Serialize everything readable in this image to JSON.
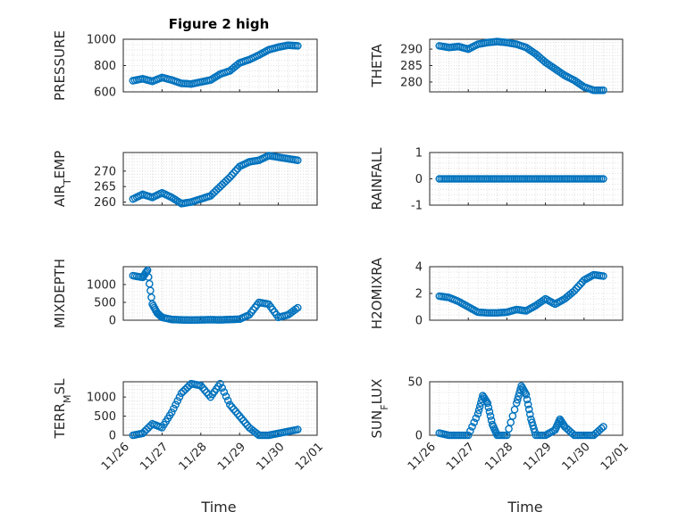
{
  "figure": {
    "title": "Figure 2 high",
    "xlabel": "Time",
    "xtick_labels": [
      "11/26",
      "11/27",
      "11/28",
      "11/29",
      "11/30",
      "12/01"
    ]
  },
  "colors": {
    "marker": "#0072BD",
    "axis": "#262626",
    "grid": "#d9d9d9"
  },
  "chart_data": [
    {
      "type": "scatter",
      "ylabel": "PRESSURE",
      "ylabel_sub": "",
      "ylim": [
        600,
        1000
      ],
      "yticks": [
        600,
        800,
        1000
      ],
      "x": [
        "11/26 06:00",
        "11/26 12:00",
        "11/26 18:00",
        "11/27 00:00",
        "11/27 06:00",
        "11/27 12:00",
        "11/27 18:00",
        "11/28 00:00",
        "11/28 06:00",
        "11/28 12:00",
        "11/28 18:00",
        "11/29 00:00",
        "11/29 06:00",
        "11/29 12:00",
        "11/29 18:00",
        "11/30 00:00",
        "11/30 06:00",
        "11/30 12:00"
      ],
      "values": [
        685,
        700,
        680,
        710,
        690,
        665,
        660,
        675,
        690,
        735,
        760,
        820,
        845,
        880,
        920,
        940,
        955,
        950
      ]
    },
    {
      "type": "scatter",
      "ylabel": "THETA",
      "ylabel_sub": "",
      "ylim": [
        277,
        293
      ],
      "yticks": [
        280,
        285,
        290
      ],
      "x": [
        "11/26 06:00",
        "11/26 12:00",
        "11/26 18:00",
        "11/27 00:00",
        "11/27 06:00",
        "11/27 12:00",
        "11/27 18:00",
        "11/28 00:00",
        "11/28 06:00",
        "11/28 12:00",
        "11/28 18:00",
        "11/29 00:00",
        "11/29 06:00",
        "11/29 12:00",
        "11/29 18:00",
        "11/30 00:00",
        "11/30 06:00",
        "11/30 12:00"
      ],
      "values": [
        291,
        290.5,
        290.8,
        290,
        291.5,
        292,
        292.3,
        292,
        291.5,
        290.5,
        288.5,
        286,
        284,
        282,
        280.5,
        278.5,
        277.5,
        277.5
      ]
    },
    {
      "type": "scatter",
      "ylabel": "AIR",
      "ylabel_sub": "T",
      "ylabel_rest": "EMP",
      "ylim": [
        259,
        276
      ],
      "yticks": [
        260,
        265,
        270
      ],
      "x": [
        "11/26 06:00",
        "11/26 12:00",
        "11/26 18:00",
        "11/27 00:00",
        "11/27 06:00",
        "11/27 12:00",
        "11/27 18:00",
        "11/28 00:00",
        "11/28 06:00",
        "11/28 12:00",
        "11/28 18:00",
        "11/29 00:00",
        "11/29 06:00",
        "11/29 12:00",
        "11/29 18:00",
        "11/30 00:00",
        "11/30 06:00",
        "11/30 12:00"
      ],
      "values": [
        261,
        262.5,
        261.5,
        263,
        261.5,
        259.5,
        260,
        261,
        262,
        265,
        268,
        271.5,
        273,
        273.5,
        275,
        274.5,
        274,
        273.5
      ]
    },
    {
      "type": "scatter",
      "ylabel": "RAINFALL",
      "ylabel_sub": "",
      "ylim": [
        -1,
        1
      ],
      "yticks": [
        -1,
        0,
        1
      ],
      "x": [
        "11/26 06:00",
        "11/26 12:00",
        "11/26 18:00",
        "11/27 00:00",
        "11/27 06:00",
        "11/27 12:00",
        "11/27 18:00",
        "11/28 00:00",
        "11/28 06:00",
        "11/28 12:00",
        "11/28 18:00",
        "11/29 00:00",
        "11/29 06:00",
        "11/29 12:00",
        "11/29 18:00",
        "11/30 00:00",
        "11/30 06:00",
        "11/30 12:00"
      ],
      "values": [
        0,
        0,
        0,
        0,
        0,
        0,
        0,
        0,
        0,
        0,
        0,
        0,
        0,
        0,
        0,
        0,
        0,
        0
      ]
    },
    {
      "type": "scatter",
      "ylabel": "MIXDEPTH",
      "ylabel_sub": "",
      "ylim": [
        0,
        1500
      ],
      "yticks": [
        0,
        500,
        1000
      ],
      "x": [
        "11/26 06:00",
        "11/26 12:00",
        "11/26 15:00",
        "11/26 18:00",
        "11/26 21:00",
        "11/27 00:00",
        "11/27 06:00",
        "11/27 12:00",
        "11/27 18:00",
        "11/28 00:00",
        "11/28 06:00",
        "11/28 12:00",
        "11/28 18:00",
        "11/29 00:00",
        "11/29 06:00",
        "11/29 12:00",
        "11/29 18:00",
        "11/30 00:00",
        "11/30 06:00",
        "11/30 12:00"
      ],
      "values": [
        1250,
        1200,
        1400,
        450,
        200,
        80,
        20,
        10,
        5,
        10,
        15,
        10,
        20,
        30,
        150,
        500,
        450,
        80,
        150,
        350
      ]
    },
    {
      "type": "scatter",
      "ylabel": "H2OMIXRA",
      "ylabel_sub": "",
      "ylim": [
        0,
        4
      ],
      "yticks": [
        0,
        2,
        4
      ],
      "x": [
        "11/26 06:00",
        "11/26 12:00",
        "11/26 18:00",
        "11/27 00:00",
        "11/27 06:00",
        "11/27 12:00",
        "11/27 18:00",
        "11/28 00:00",
        "11/28 06:00",
        "11/28 12:00",
        "11/28 18:00",
        "11/29 00:00",
        "11/29 06:00",
        "11/29 12:00",
        "11/29 18:00",
        "11/30 00:00",
        "11/30 06:00",
        "11/30 12:00"
      ],
      "values": [
        1.8,
        1.7,
        1.4,
        1.0,
        0.6,
        0.55,
        0.55,
        0.6,
        0.8,
        0.7,
        1.1,
        1.6,
        1.2,
        1.6,
        2.2,
        3.0,
        3.4,
        3.3
      ]
    },
    {
      "type": "scatter",
      "ylabel": "TERR",
      "ylabel_sub": "M",
      "ylabel_rest": "SL",
      "ylim": [
        0,
        1400
      ],
      "yticks": [
        0,
        500,
        1000
      ],
      "x": [
        "11/26 06:00",
        "11/26 12:00",
        "11/26 18:00",
        "11/27 00:00",
        "11/27 06:00",
        "11/27 12:00",
        "11/27 18:00",
        "11/28 00:00",
        "11/28 06:00",
        "11/28 12:00",
        "11/28 18:00",
        "11/29 00:00",
        "11/29 06:00",
        "11/29 12:00",
        "11/29 18:00",
        "11/30 00:00",
        "11/30 06:00",
        "11/30 12:00"
      ],
      "values": [
        0,
        50,
        300,
        200,
        600,
        1100,
        1350,
        1300,
        1000,
        1350,
        800,
        500,
        200,
        0,
        0,
        50,
        100,
        150
      ]
    },
    {
      "type": "scatter",
      "ylabel": "SUN",
      "ylabel_sub": "F",
      "ylabel_rest": "LUX",
      "ylim": [
        0,
        50
      ],
      "yticks": [
        0,
        50
      ],
      "x": [
        "11/26 06:00",
        "11/26 12:00",
        "11/26 18:00",
        "11/27 00:00",
        "11/27 06:00",
        "11/27 09:00",
        "11/27 12:00",
        "11/27 15:00",
        "11/27 18:00",
        "11/28 00:00",
        "11/28 06:00",
        "11/28 09:00",
        "11/28 12:00",
        "11/28 15:00",
        "11/28 18:00",
        "11/29 00:00",
        "11/29 06:00",
        "11/29 09:00",
        "11/29 12:00",
        "11/29 18:00",
        "11/30 00:00",
        "11/30 06:00",
        "11/30 12:00"
      ],
      "values": [
        2,
        0,
        0,
        0,
        20,
        37,
        30,
        10,
        0,
        0,
        30,
        46,
        38,
        15,
        0,
        0,
        5,
        15,
        8,
        0,
        0,
        0,
        8
      ]
    }
  ]
}
